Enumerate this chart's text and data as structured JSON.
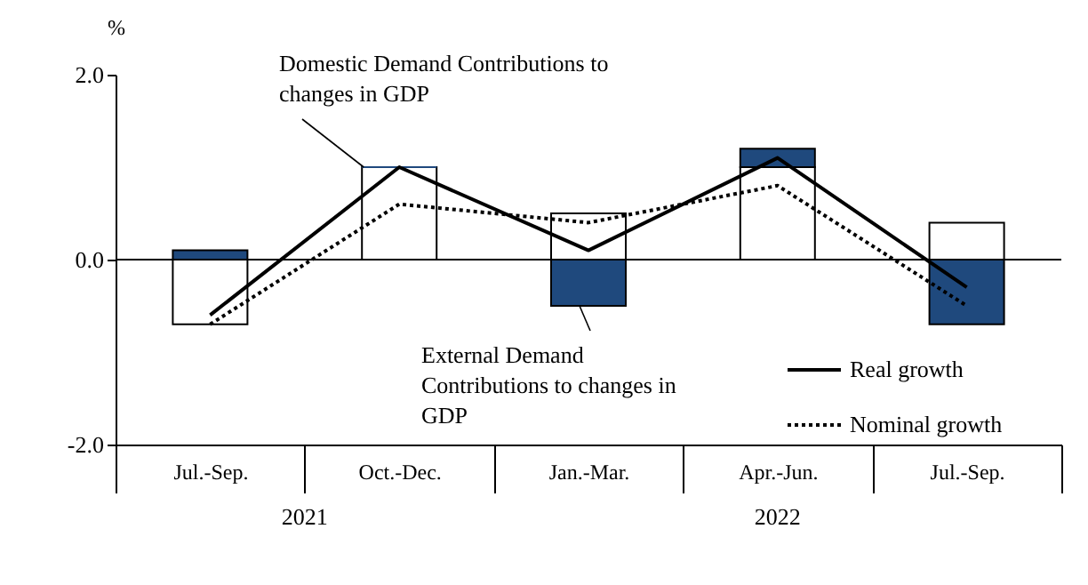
{
  "chart_data": {
    "type": "bar",
    "stacked": true,
    "ylabel": "%",
    "categories": [
      "Jul.-Sep.",
      "Oct.-Dec.",
      "Jan.-Mar.",
      "Apr.-Jun.",
      "Jul.-Sep."
    ],
    "series": [
      {
        "color": "#ffffff",
        "values": [
          -0.7,
          1.0,
          0.5,
          1.0,
          0.4
        ]
      },
      {
        "color": "#1f497d",
        "values": [
          0.1,
          0.0,
          -0.5,
          0.2,
          -0.7
        ]
      },
      {
        "name": "Real growth",
        "type": "line",
        "color": "#000000",
        "line_style": "solid",
        "values": [
          -0.6,
          1.0,
          0.1,
          1.1,
          -0.3
        ]
      },
      {
        "name": "Nominal growth",
        "type": "line",
        "color": "#000000",
        "line_style": "dotted",
        "values": [
          -0.7,
          0.6,
          0.4,
          0.8,
          -0.5
        ]
      }
    ],
    "ylim": [
      -2,
      2
    ],
    "yticks": [
      {
        "value": -2,
        "label": "-2.0"
      },
      {
        "value": 0,
        "label": "0.0"
      },
      {
        "value": 2,
        "label": "2.0"
      }
    ],
    "ref_lines": [
      {
        "axis": "y",
        "value": 0,
        "color": "#000000"
      }
    ],
    "annotations": [
      {
        "text": "Domestic Demand Contributions to changes in GDP",
        "x": "Oct.-Dec.",
        "y": 1.0
      },
      {
        "text": "External Demand Contributions to changes in GDP",
        "x": "Jan.-Mar.",
        "y": -0.5
      },
      "2021",
      "2022"
    ],
    "legend": "bottom right",
    "grid": false
  }
}
